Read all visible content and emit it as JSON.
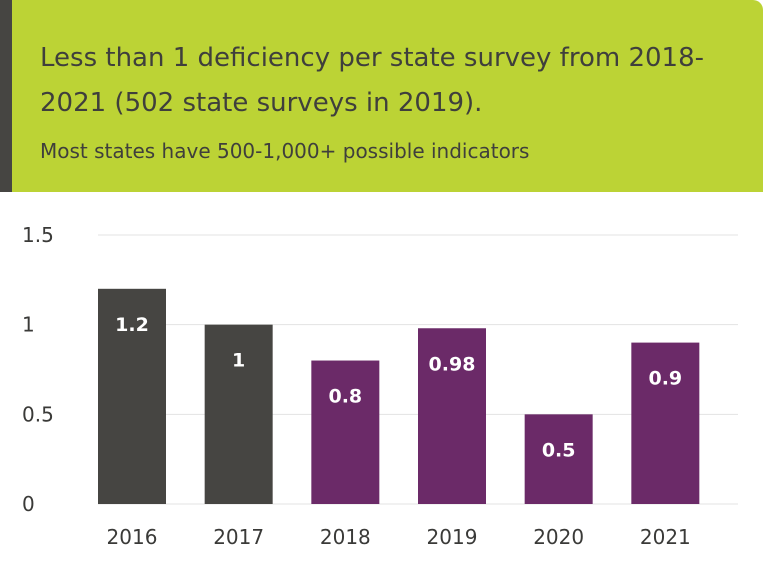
{
  "header": {
    "title": "Less than 1 deficiency per state survey from 2018-2021 (502 state surveys in 2019).",
    "subtitle": "Most states have 500-1,000+ possible indicators"
  },
  "colors": {
    "header_bg": "#bcd335",
    "accent": "#464542",
    "dark_bar": "#464542",
    "purple_bar": "#6b2a68"
  },
  "chart_data": {
    "type": "bar",
    "categories": [
      "2016",
      "2017",
      "2018",
      "2019",
      "2020",
      "2021"
    ],
    "values": [
      1.2,
      1,
      0.8,
      0.98,
      0.5,
      0.9
    ],
    "data_labels": [
      "1.2",
      "1",
      "0.8",
      "0.98",
      "0.5",
      "0.9"
    ],
    "bar_colors": [
      "#464542",
      "#464542",
      "#6b2a68",
      "#6b2a68",
      "#6b2a68",
      "#6b2a68"
    ],
    "yticks": [
      0,
      0.5,
      1,
      1.5
    ],
    "ytick_labels": [
      "0",
      "0.5",
      "1",
      "1.5"
    ],
    "ylim": [
      0,
      1.5
    ],
    "grid": true,
    "xlabel": "",
    "ylabel": ""
  }
}
